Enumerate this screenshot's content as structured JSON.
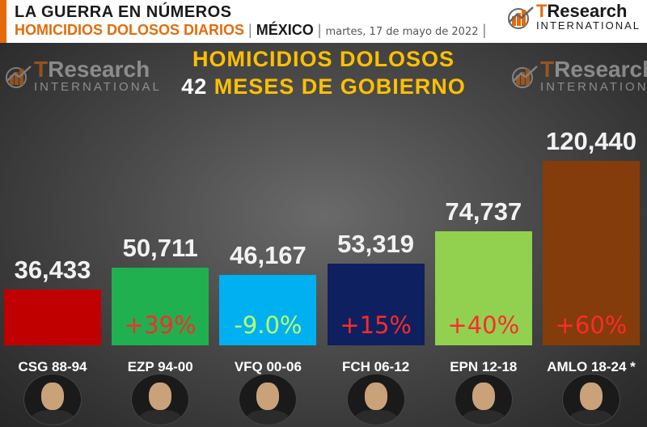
{
  "header": {
    "line1": "LA GUERRA EN NÚMEROS",
    "subtitle": "HOMICIDIOS DOLOSOS DIARIOS",
    "country": "MÉXICO",
    "date": "martes, 17 de mayo de 2022"
  },
  "logo": {
    "brand_t": "T",
    "brand_rest": "Research",
    "sub": "INTERNATIONAL",
    "icon": "bar-chart-logo-icon"
  },
  "colors": {
    "accent": "#e46c0a",
    "title": "#ffc000"
  },
  "chart_data": {
    "type": "bar",
    "title": "HOMICIDIOS DOLOSOS",
    "subtitle_number": "42",
    "subtitle_text": "MESES DE GOBIERNO",
    "categories": [
      "CSG 88-94",
      "EZP 94-00",
      "VFQ 00-06",
      "FCH 06-12",
      "EPN 12-18",
      "AMLO 18-24 *"
    ],
    "values": [
      36433,
      50711,
      46167,
      53319,
      74737,
      120440
    ],
    "value_labels": [
      "36,433",
      "50,711",
      "46,167",
      "53,319",
      "74,737",
      "120,440"
    ],
    "change_labels": [
      "",
      "+39%",
      "-9.0%",
      "+15%",
      "+40%",
      "+60%"
    ],
    "colors": [
      "#c00000",
      "#20b050",
      "#00b0f0",
      "#0f2060",
      "#92d050",
      "#843c0c"
    ],
    "change_colors": [
      "",
      "#ff2a2a",
      "#b8ff6a",
      "#ff2a2a",
      "#ff2a2a",
      "#ff2a2a"
    ],
    "ylim": [
      0,
      120440
    ]
  }
}
